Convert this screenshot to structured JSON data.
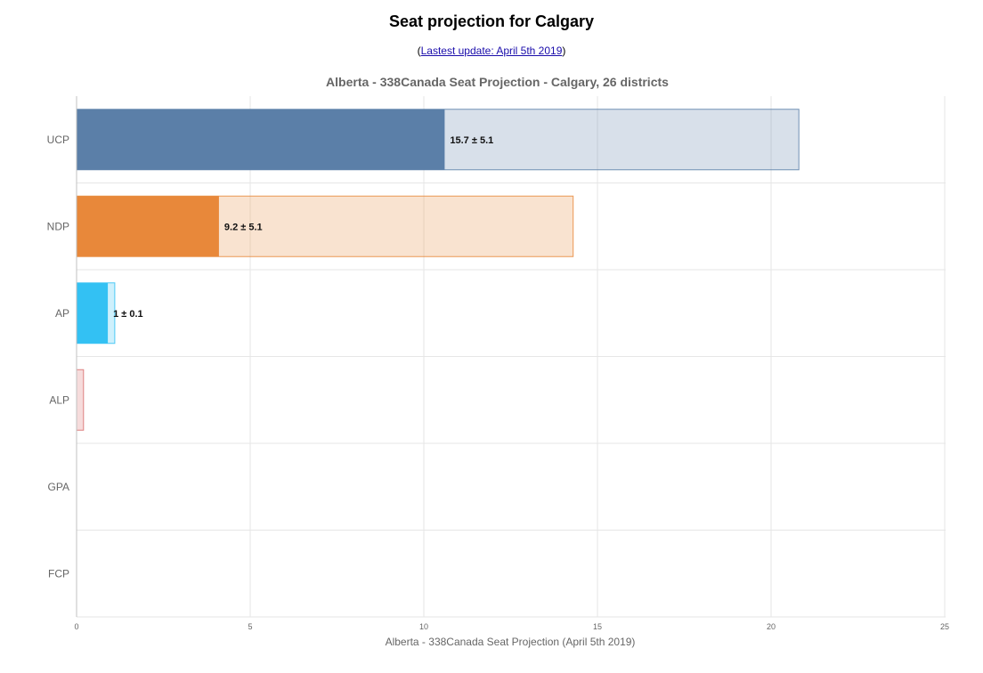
{
  "page": {
    "title": "Seat projection for Calgary",
    "update_open": "(",
    "update_link": "Lastest update: April 5th 2019",
    "update_close": ")"
  },
  "chart_data": {
    "type": "bar",
    "orientation": "horizontal",
    "title": "Alberta - 338Canada Seat Projection - Calgary, 26 districts",
    "xlabel": "Alberta - 338Canada Seat Projection (April 5th 2019)",
    "ylabel": "",
    "xlim": [
      0,
      25
    ],
    "xticks": [
      0,
      5,
      10,
      15,
      20,
      25
    ],
    "grid": true,
    "categories": [
      "UCP",
      "NDP",
      "AP",
      "ALP",
      "GPA",
      "FCP"
    ],
    "series": [
      {
        "role": "projection",
        "values": [
          10.6,
          4.1,
          0.9,
          0,
          0,
          0
        ]
      },
      {
        "role": "range",
        "values": [
          20.8,
          14.3,
          1.1,
          0.2,
          0,
          0
        ]
      }
    ],
    "labels": [
      "15.7 ± 5.1",
      "9.2 ± 5.1",
      "1 ± 0.1",
      "",
      "",
      ""
    ],
    "colors": {
      "UCP": "#5b7fa8",
      "NDP": "#e8883a",
      "AP": "#33c1f3",
      "ALP": "#d86c6c",
      "GPA": "#4caf50",
      "FCP": "#888888"
    }
  }
}
